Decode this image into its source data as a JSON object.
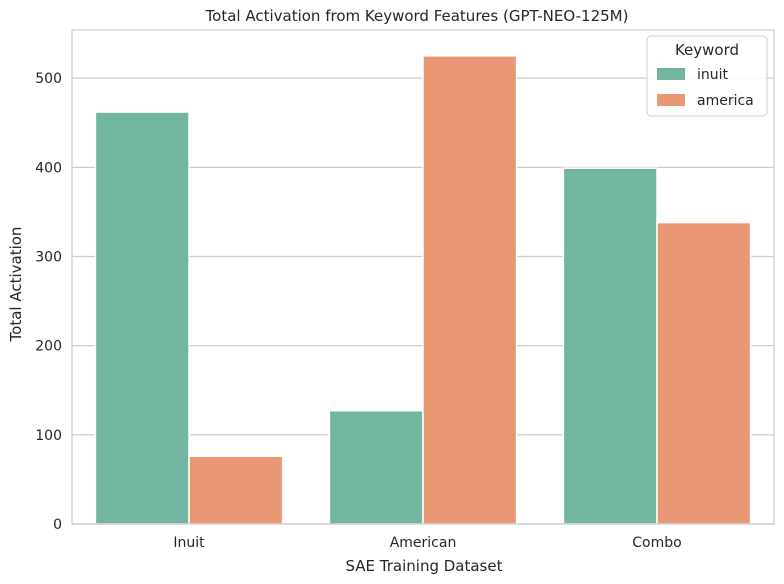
{
  "chart_data": {
    "type": "bar",
    "title": "Total Activation from Keyword Features (GPT-NEO-125M)",
    "xlabel": "SAE Training Dataset",
    "ylabel": "Total Activation",
    "categories": [
      "Inuit",
      "American",
      "Combo"
    ],
    "series": [
      {
        "name": "inuit",
        "color": "#72b6a1",
        "values": [
          462,
          127,
          399
        ]
      },
      {
        "name": "america",
        "color": "#e99675",
        "values": [
          76,
          525,
          338
        ]
      }
    ],
    "ylim": [
      0,
      554
    ],
    "yticks": [
      0,
      100,
      200,
      300,
      400,
      500
    ],
    "grid": "horizontal",
    "legend": {
      "title": "Keyword",
      "placement": "top-right"
    }
  }
}
